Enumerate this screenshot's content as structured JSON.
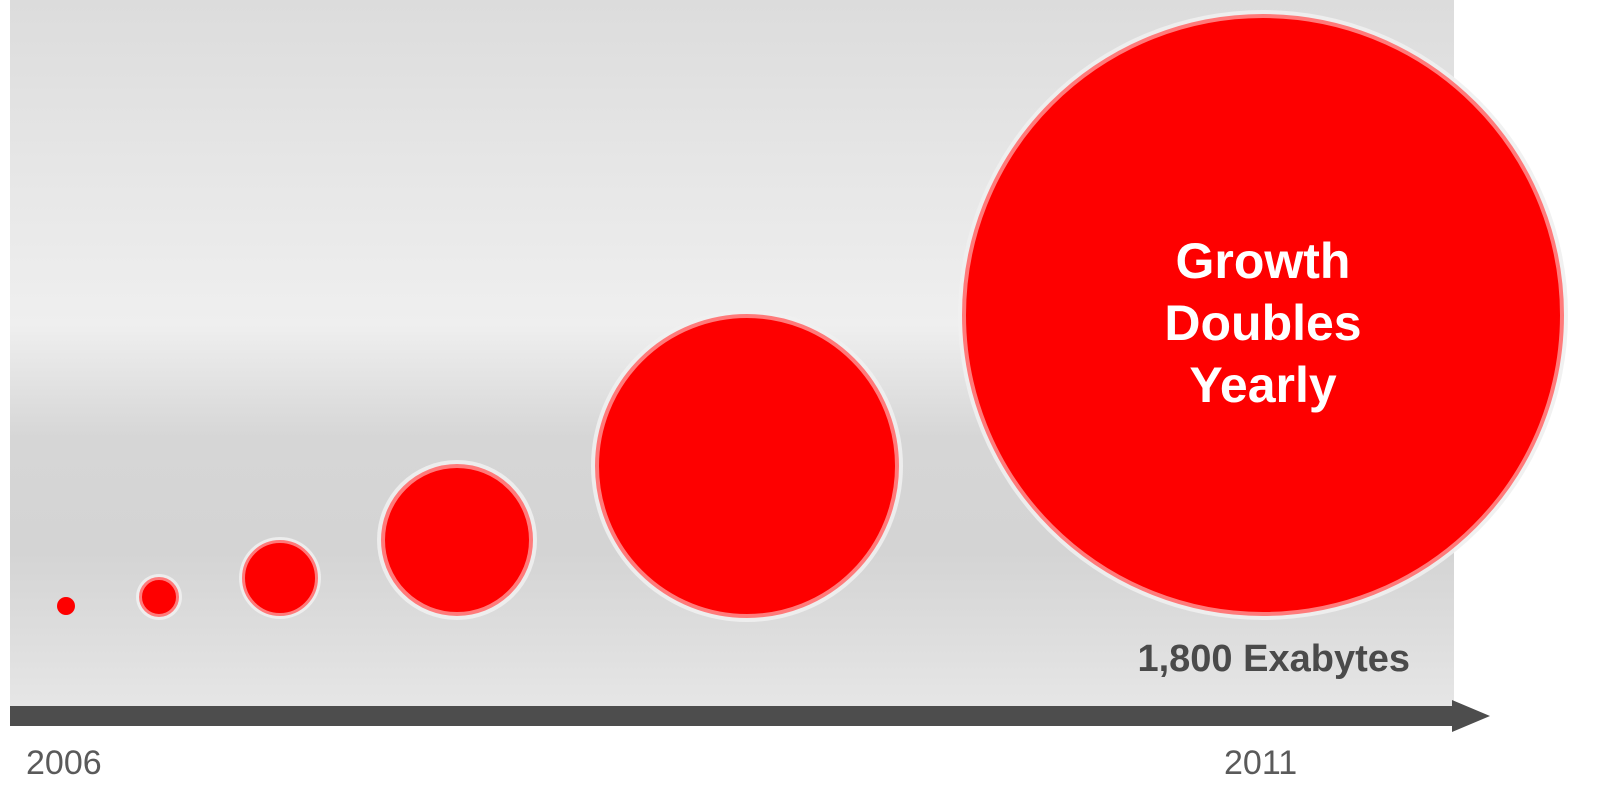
{
  "diagram": {
    "headline_lines": [
      "Growth",
      "Doubles",
      "Yearly"
    ],
    "total_label": "1,800 Exabytes",
    "start_year": "2006",
    "end_year": "2011",
    "bubble_color": "#fe0000",
    "bubble_ring_color": "#ff7a7a",
    "axis_color": "#4d4d4d",
    "bubble_count": 6
  }
}
